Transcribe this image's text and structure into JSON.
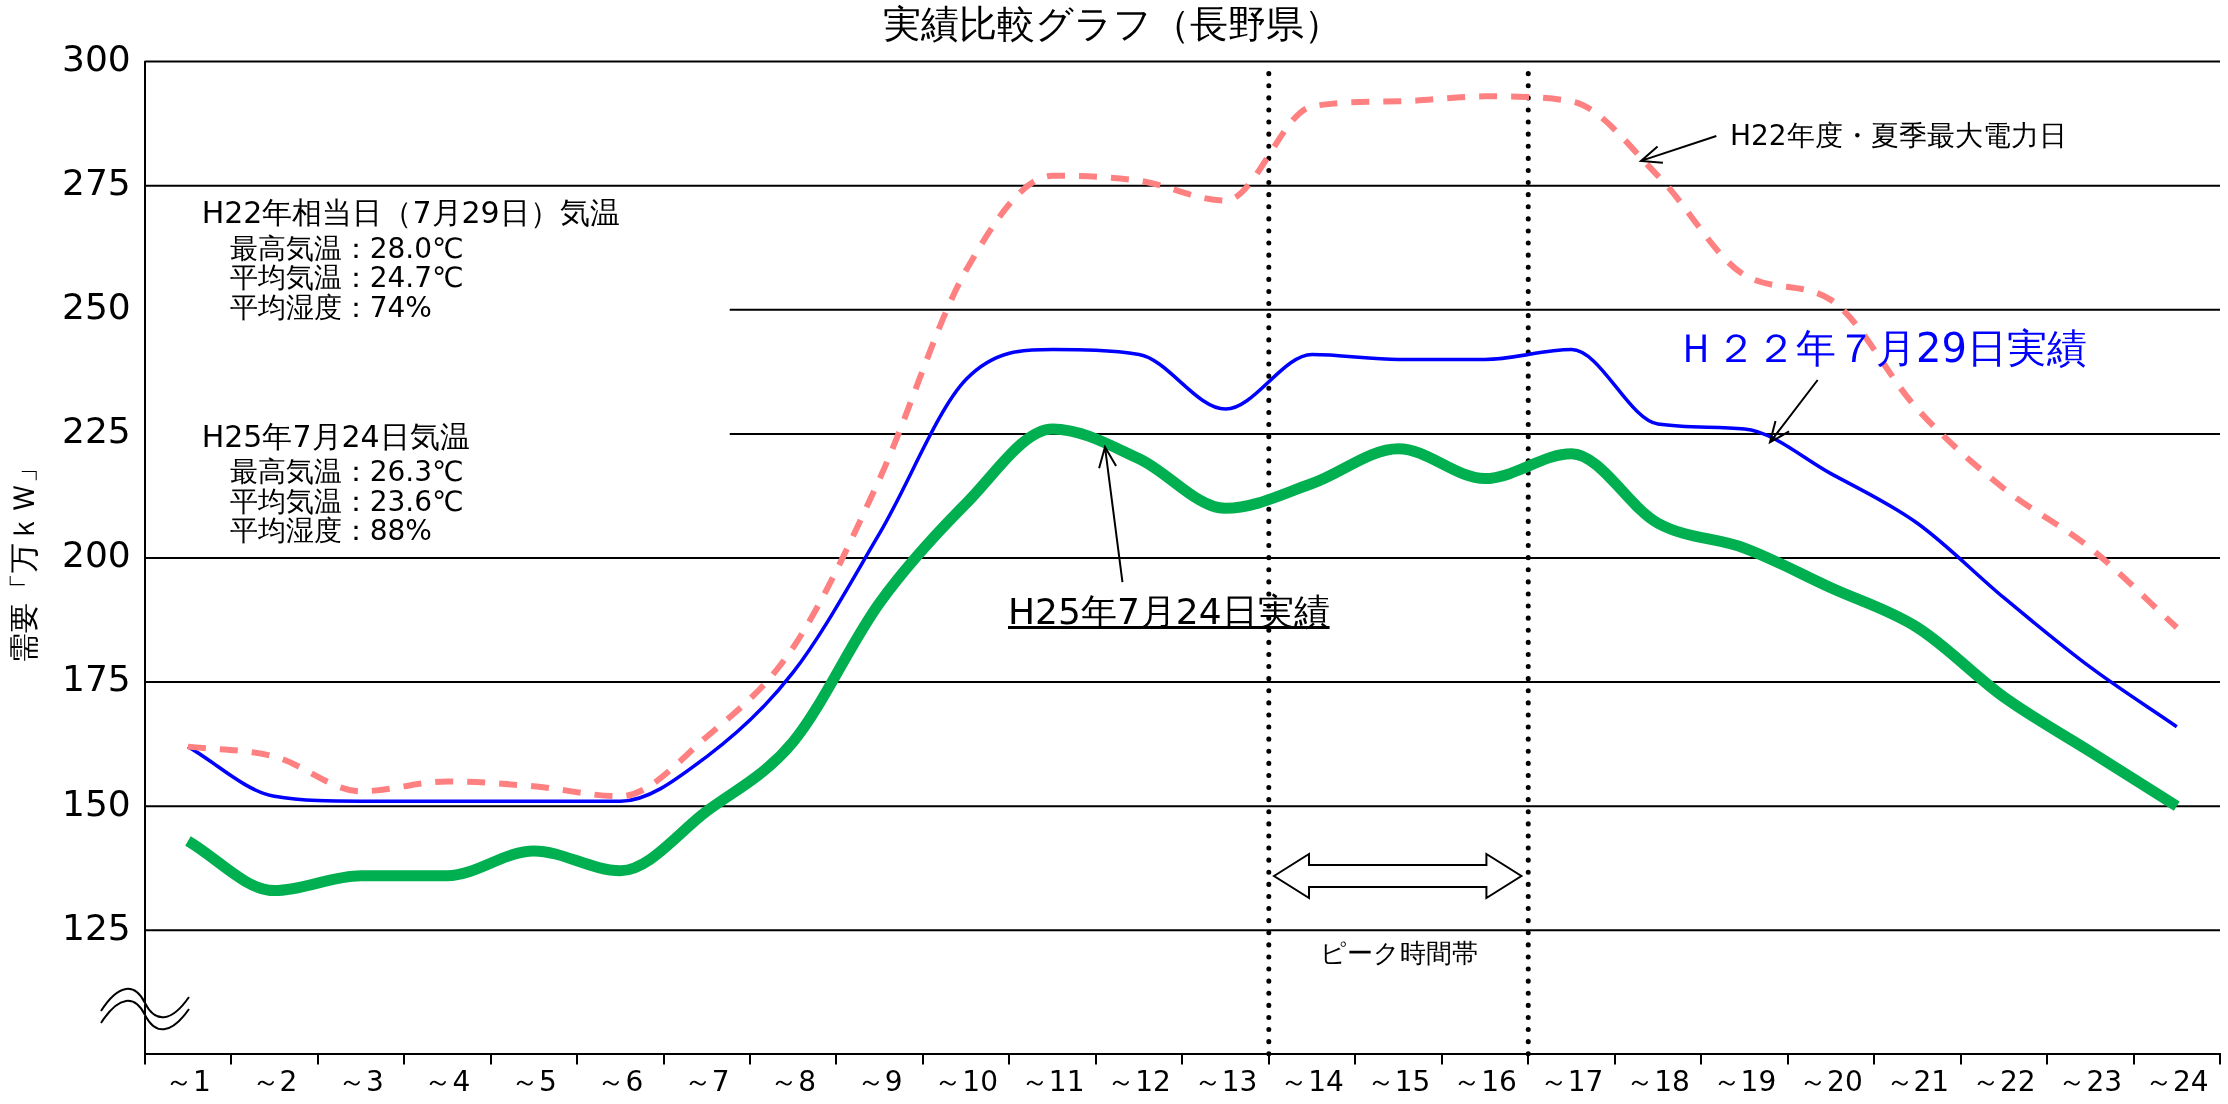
{
  "chart_data": {
    "type": "line",
    "title": "実績比較グラフ（長野県）",
    "ylabel": "需要「万ｋＷ」",
    "x": [
      1,
      2,
      3,
      4,
      5,
      6,
      7,
      8,
      9,
      10,
      11,
      12,
      13,
      14,
      15,
      16,
      17,
      18,
      19,
      20,
      21,
      22,
      23,
      24
    ],
    "series": [
      {
        "name": "H22年度・夏季最大電力日",
        "color": "#ff8080",
        "line_style": "dashed",
        "values": [
          162,
          160,
          153,
          155,
          154,
          152,
          164,
          182,
          216,
          258,
          277,
          276,
          272,
          291,
          292,
          293,
          292,
          277,
          257,
          252,
          230,
          214,
          202,
          186
        ]
      },
      {
        "name": "Ｈ２２年７月29日実績",
        "color": "#0000ff",
        "line_style": "solid",
        "values": [
          162,
          152,
          151,
          151,
          151,
          151,
          160,
          177,
          205,
          236,
          242,
          241,
          230,
          241,
          240,
          240,
          242,
          227,
          226,
          217,
          207,
          192,
          178,
          166
        ]
      },
      {
        "name": "H25年7月24日実績",
        "color": "#00b050",
        "line_style": "solid",
        "values": [
          143,
          133,
          136,
          136,
          141,
          137,
          149,
          163,
          191,
          211,
          226,
          220,
          210,
          215,
          222,
          216,
          221,
          207,
          202,
          194,
          186,
          172,
          161,
          150
        ]
      }
    ],
    "xlim": [
      0.5,
      24.5
    ],
    "xticks": [
      {
        "value": 0.5,
        "label": null
      },
      {
        "value": 1,
        "label": "～1"
      },
      {
        "value": 1.5,
        "label": null
      },
      {
        "value": 2,
        "label": "～2"
      },
      {
        "value": 2.5,
        "label": null
      },
      {
        "value": 3,
        "label": "～3"
      },
      {
        "value": 3.5,
        "label": null
      },
      {
        "value": 4,
        "label": "～4"
      },
      {
        "value": 4.5,
        "label": null
      },
      {
        "value": 5,
        "label": "～5"
      },
      {
        "value": 5.5,
        "label": null
      },
      {
        "value": 6,
        "label": "～6"
      },
      {
        "value": 6.5,
        "label": null
      },
      {
        "value": 7,
        "label": "～7"
      },
      {
        "value": 7.5,
        "label": null
      },
      {
        "value": 8,
        "label": "～8"
      },
      {
        "value": 8.5,
        "label": null
      },
      {
        "value": 9,
        "label": "～9"
      },
      {
        "value": 9.5,
        "label": null
      },
      {
        "value": 10,
        "label": "～10"
      },
      {
        "value": 10.5,
        "label": null
      },
      {
        "value": 11,
        "label": "～11"
      },
      {
        "value": 11.5,
        "label": null
      },
      {
        "value": 12,
        "label": "～12"
      },
      {
        "value": 12.5,
        "label": null
      },
      {
        "value": 13,
        "label": "～13"
      },
      {
        "value": 13.5,
        "label": null
      },
      {
        "value": 14,
        "label": "～14"
      },
      {
        "value": 14.5,
        "label": null
      },
      {
        "value": 15,
        "label": "～15"
      },
      {
        "value": 15.5,
        "label": null
      },
      {
        "value": 16,
        "label": "～16"
      },
      {
        "value": 16.5,
        "label": null
      },
      {
        "value": 17,
        "label": "～17"
      },
      {
        "value": 17.5,
        "label": null
      },
      {
        "value": 18,
        "label": "～18"
      },
      {
        "value": 18.5,
        "label": null
      },
      {
        "value": 19,
        "label": "～19"
      },
      {
        "value": 19.5,
        "label": null
      },
      {
        "value": 20,
        "label": "～20"
      },
      {
        "value": 20.5,
        "label": null
      },
      {
        "value": 21,
        "label": "～21"
      },
      {
        "value": 21.5,
        "label": null
      },
      {
        "value": 22,
        "label": "～22"
      },
      {
        "value": 22.5,
        "label": null
      },
      {
        "value": 23,
        "label": "～23"
      },
      {
        "value": 23.5,
        "label": null
      },
      {
        "value": 24,
        "label": "～24"
      },
      {
        "value": 24.5,
        "label": null
      }
    ],
    "ylim": [
      100,
      300
    ],
    "yticks": [
      125,
      150,
      175,
      200,
      225,
      250,
      275,
      300
    ],
    "grid": "y",
    "legend": false,
    "marker": "none",
    "ref_lines": [
      {
        "axis": "x",
        "value": 13.5,
        "color": "#000000",
        "line_style": "dotted"
      },
      {
        "axis": "x",
        "value": 16.5,
        "color": "#000000",
        "line_style": "dotted"
      }
    ],
    "annotations": [
      "H22年相当日（7月29日）気温",
      "最高気温：28.0℃",
      "平均気温：24.7℃",
      "平均湿度：74%",
      "H25年7月24日気温",
      "最高気温：26.3℃",
      "平均気温：23.6℃",
      "平均湿度：88%",
      "ピーク時間帯"
    ]
  }
}
